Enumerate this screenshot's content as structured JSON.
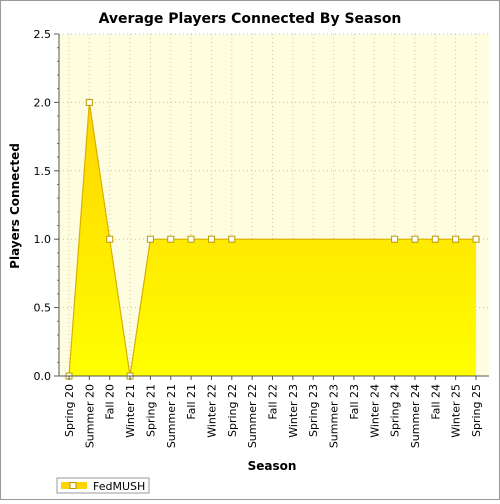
{
  "chart_data": {
    "type": "area",
    "title": "Average Players Connected By Season",
    "xlabel": "Season",
    "ylabel": "Players Connected",
    "ylim": [
      0,
      2.5
    ],
    "yticks": [
      "0.0",
      "0.5",
      "1.0",
      "1.5",
      "2.0",
      "2.5"
    ],
    "categories": [
      "Spring 20",
      "Summer 20",
      "Fall 20",
      "Winter 21",
      "Spring 21",
      "Summer 21",
      "Fall 21",
      "Winter 22",
      "Spring 22",
      "Summer 22",
      "Fall 22",
      "Winter 23",
      "Spring 23",
      "Summer 23",
      "Fall 23",
      "Winter 24",
      "Spring 24",
      "Summer 24",
      "Fall 24",
      "Winter 25",
      "Spring 25"
    ],
    "series": [
      {
        "name": "FedMUSH",
        "values": [
          0,
          2,
          1,
          0,
          1,
          1,
          1,
          1,
          1,
          null,
          null,
          null,
          null,
          null,
          null,
          null,
          1,
          1,
          1,
          1,
          1
        ],
        "area_values": [
          0,
          2,
          1,
          0,
          1,
          1,
          1,
          1,
          1,
          1,
          1,
          1,
          1,
          1,
          1,
          1,
          1,
          1,
          1,
          1,
          1
        ]
      }
    ],
    "grid": true,
    "legend": "bottom-left",
    "colors": {
      "plot_background": "#fffde0",
      "fill_top": "#ffd400",
      "fill_bottom": "#ffff00",
      "line": "#d8b000",
      "marker_fill": "#ffffff",
      "marker_stroke": "#b89a00",
      "grid": "#c8c8a0"
    }
  }
}
